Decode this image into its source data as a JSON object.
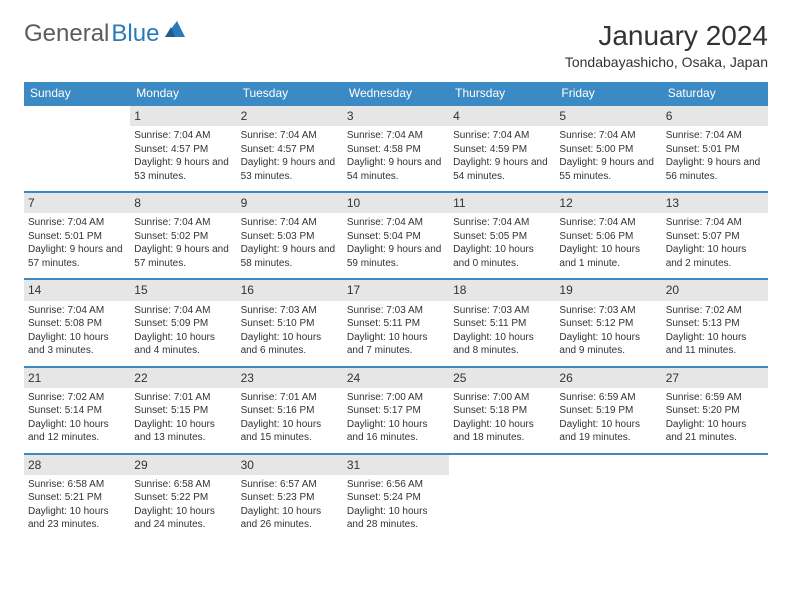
{
  "logo": {
    "text1": "General",
    "text2": "Blue"
  },
  "title": "January 2024",
  "location": "Tondabayashicho, Osaka, Japan",
  "colors": {
    "header_bg": "#3b8ac4",
    "header_text": "#ffffff",
    "daynum_bg": "#e6e6e6",
    "row_border": "#3b8ac4",
    "logo_gray": "#5c5c5c",
    "logo_blue": "#2a7ab9",
    "text": "#333333",
    "page_bg": "#ffffff"
  },
  "typography": {
    "title_fontsize": 28,
    "location_fontsize": 14,
    "weekday_fontsize": 12,
    "daynum_fontsize": 12,
    "body_fontsize": 10
  },
  "weekdays": [
    "Sunday",
    "Monday",
    "Tuesday",
    "Wednesday",
    "Thursday",
    "Friday",
    "Saturday"
  ],
  "weeks": [
    [
      {
        "num": "",
        "sunrise": "",
        "sunset": "",
        "daylight": ""
      },
      {
        "num": "1",
        "sunrise": "Sunrise: 7:04 AM",
        "sunset": "Sunset: 4:57 PM",
        "daylight": "Daylight: 9 hours and 53 minutes."
      },
      {
        "num": "2",
        "sunrise": "Sunrise: 7:04 AM",
        "sunset": "Sunset: 4:57 PM",
        "daylight": "Daylight: 9 hours and 53 minutes."
      },
      {
        "num": "3",
        "sunrise": "Sunrise: 7:04 AM",
        "sunset": "Sunset: 4:58 PM",
        "daylight": "Daylight: 9 hours and 54 minutes."
      },
      {
        "num": "4",
        "sunrise": "Sunrise: 7:04 AM",
        "sunset": "Sunset: 4:59 PM",
        "daylight": "Daylight: 9 hours and 54 minutes."
      },
      {
        "num": "5",
        "sunrise": "Sunrise: 7:04 AM",
        "sunset": "Sunset: 5:00 PM",
        "daylight": "Daylight: 9 hours and 55 minutes."
      },
      {
        "num": "6",
        "sunrise": "Sunrise: 7:04 AM",
        "sunset": "Sunset: 5:01 PM",
        "daylight": "Daylight: 9 hours and 56 minutes."
      }
    ],
    [
      {
        "num": "7",
        "sunrise": "Sunrise: 7:04 AM",
        "sunset": "Sunset: 5:01 PM",
        "daylight": "Daylight: 9 hours and 57 minutes."
      },
      {
        "num": "8",
        "sunrise": "Sunrise: 7:04 AM",
        "sunset": "Sunset: 5:02 PM",
        "daylight": "Daylight: 9 hours and 57 minutes."
      },
      {
        "num": "9",
        "sunrise": "Sunrise: 7:04 AM",
        "sunset": "Sunset: 5:03 PM",
        "daylight": "Daylight: 9 hours and 58 minutes."
      },
      {
        "num": "10",
        "sunrise": "Sunrise: 7:04 AM",
        "sunset": "Sunset: 5:04 PM",
        "daylight": "Daylight: 9 hours and 59 minutes."
      },
      {
        "num": "11",
        "sunrise": "Sunrise: 7:04 AM",
        "sunset": "Sunset: 5:05 PM",
        "daylight": "Daylight: 10 hours and 0 minutes."
      },
      {
        "num": "12",
        "sunrise": "Sunrise: 7:04 AM",
        "sunset": "Sunset: 5:06 PM",
        "daylight": "Daylight: 10 hours and 1 minute."
      },
      {
        "num": "13",
        "sunrise": "Sunrise: 7:04 AM",
        "sunset": "Sunset: 5:07 PM",
        "daylight": "Daylight: 10 hours and 2 minutes."
      }
    ],
    [
      {
        "num": "14",
        "sunrise": "Sunrise: 7:04 AM",
        "sunset": "Sunset: 5:08 PM",
        "daylight": "Daylight: 10 hours and 3 minutes."
      },
      {
        "num": "15",
        "sunrise": "Sunrise: 7:04 AM",
        "sunset": "Sunset: 5:09 PM",
        "daylight": "Daylight: 10 hours and 4 minutes."
      },
      {
        "num": "16",
        "sunrise": "Sunrise: 7:03 AM",
        "sunset": "Sunset: 5:10 PM",
        "daylight": "Daylight: 10 hours and 6 minutes."
      },
      {
        "num": "17",
        "sunrise": "Sunrise: 7:03 AM",
        "sunset": "Sunset: 5:11 PM",
        "daylight": "Daylight: 10 hours and 7 minutes."
      },
      {
        "num": "18",
        "sunrise": "Sunrise: 7:03 AM",
        "sunset": "Sunset: 5:11 PM",
        "daylight": "Daylight: 10 hours and 8 minutes."
      },
      {
        "num": "19",
        "sunrise": "Sunrise: 7:03 AM",
        "sunset": "Sunset: 5:12 PM",
        "daylight": "Daylight: 10 hours and 9 minutes."
      },
      {
        "num": "20",
        "sunrise": "Sunrise: 7:02 AM",
        "sunset": "Sunset: 5:13 PM",
        "daylight": "Daylight: 10 hours and 11 minutes."
      }
    ],
    [
      {
        "num": "21",
        "sunrise": "Sunrise: 7:02 AM",
        "sunset": "Sunset: 5:14 PM",
        "daylight": "Daylight: 10 hours and 12 minutes."
      },
      {
        "num": "22",
        "sunrise": "Sunrise: 7:01 AM",
        "sunset": "Sunset: 5:15 PM",
        "daylight": "Daylight: 10 hours and 13 minutes."
      },
      {
        "num": "23",
        "sunrise": "Sunrise: 7:01 AM",
        "sunset": "Sunset: 5:16 PM",
        "daylight": "Daylight: 10 hours and 15 minutes."
      },
      {
        "num": "24",
        "sunrise": "Sunrise: 7:00 AM",
        "sunset": "Sunset: 5:17 PM",
        "daylight": "Daylight: 10 hours and 16 minutes."
      },
      {
        "num": "25",
        "sunrise": "Sunrise: 7:00 AM",
        "sunset": "Sunset: 5:18 PM",
        "daylight": "Daylight: 10 hours and 18 minutes."
      },
      {
        "num": "26",
        "sunrise": "Sunrise: 6:59 AM",
        "sunset": "Sunset: 5:19 PM",
        "daylight": "Daylight: 10 hours and 19 minutes."
      },
      {
        "num": "27",
        "sunrise": "Sunrise: 6:59 AM",
        "sunset": "Sunset: 5:20 PM",
        "daylight": "Daylight: 10 hours and 21 minutes."
      }
    ],
    [
      {
        "num": "28",
        "sunrise": "Sunrise: 6:58 AM",
        "sunset": "Sunset: 5:21 PM",
        "daylight": "Daylight: 10 hours and 23 minutes."
      },
      {
        "num": "29",
        "sunrise": "Sunrise: 6:58 AM",
        "sunset": "Sunset: 5:22 PM",
        "daylight": "Daylight: 10 hours and 24 minutes."
      },
      {
        "num": "30",
        "sunrise": "Sunrise: 6:57 AM",
        "sunset": "Sunset: 5:23 PM",
        "daylight": "Daylight: 10 hours and 26 minutes."
      },
      {
        "num": "31",
        "sunrise": "Sunrise: 6:56 AM",
        "sunset": "Sunset: 5:24 PM",
        "daylight": "Daylight: 10 hours and 28 minutes."
      },
      {
        "num": "",
        "sunrise": "",
        "sunset": "",
        "daylight": ""
      },
      {
        "num": "",
        "sunrise": "",
        "sunset": "",
        "daylight": ""
      },
      {
        "num": "",
        "sunrise": "",
        "sunset": "",
        "daylight": ""
      }
    ]
  ]
}
